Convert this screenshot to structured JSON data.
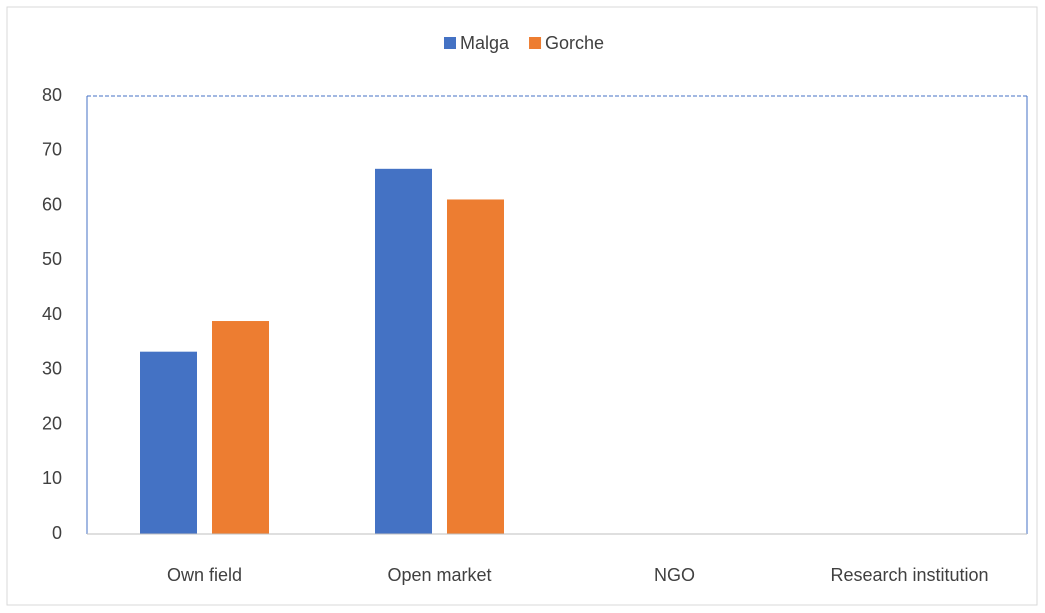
{
  "chart_data": {
    "type": "bar",
    "categories": [
      "Own field",
      "Open market",
      "NGO",
      "Research institution"
    ],
    "series": [
      {
        "name": "Malga",
        "color": "#4472c4",
        "values": [
          33.3,
          66.7,
          0,
          0
        ]
      },
      {
        "name": "Gorche",
        "color": "#ed7d31",
        "values": [
          38.9,
          61.1,
          0,
          0
        ]
      }
    ],
    "ylim": [
      0,
      80
    ],
    "yticks": [
      0,
      10,
      20,
      30,
      40,
      50,
      60,
      70,
      80
    ],
    "grid": false,
    "legend": "top"
  }
}
